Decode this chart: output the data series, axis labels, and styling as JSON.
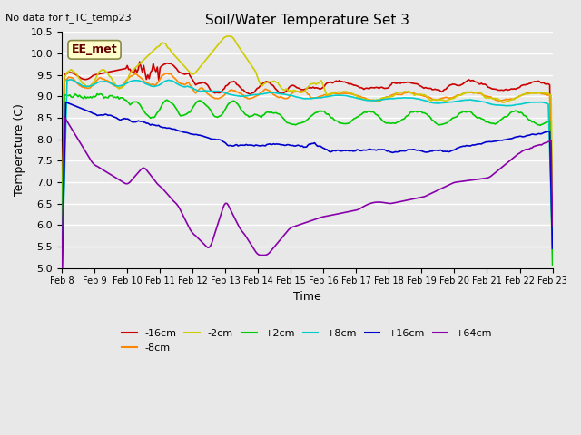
{
  "title": "Soil/Water Temperature Set 3",
  "xlabel": "Time",
  "ylabel": "Temperature (C)",
  "top_left_note": "No data for f_TC_temp23",
  "annotation_box": "EE_met",
  "ylim": [
    5.0,
    10.5
  ],
  "yticks": [
    5.0,
    5.5,
    6.0,
    6.5,
    7.0,
    7.5,
    8.0,
    8.5,
    9.0,
    9.5,
    10.0,
    10.5
  ],
  "xtick_labels": [
    "Feb 8",
    "Feb 9",
    "Feb 10",
    "Feb 11",
    "Feb 12",
    "Feb 13",
    "Feb 14",
    "Feb 15",
    "Feb 16",
    "Feb 17",
    "Feb 18",
    "Feb 19",
    "Feb 20",
    "Feb 21",
    "Feb 22",
    "Feb 23"
  ],
  "series_colors": {
    "-16cm": "#cc0000",
    "-8cm": "#ff8800",
    "-2cm": "#cccc00",
    "+2cm": "#00cc00",
    "+8cm": "#00cccc",
    "+16cm": "#0000cc",
    "+64cm": "#8800aa"
  },
  "background_color": "#e8e8e8",
  "plot_bg_color": "#e8e8e8",
  "grid_color": "#ffffff"
}
